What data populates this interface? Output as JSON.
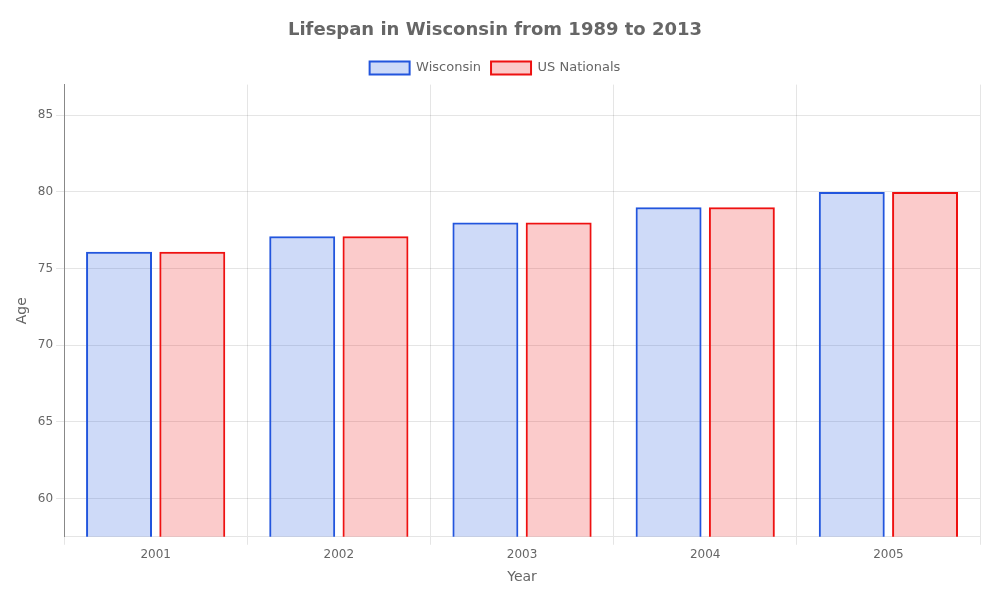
{
  "chart_data": {
    "type": "bar",
    "title": "Lifespan in Wisconsin from 1989 to 2013",
    "x_label": "Year",
    "y_label": "Age",
    "categories": [
      "2001",
      "2002",
      "2003",
      "2004",
      "2005"
    ],
    "series": [
      {
        "name": "Wisconsin",
        "color": "#2255dd",
        "values": [
          76.1,
          77.1,
          78.0,
          79.0,
          80.0
        ]
      },
      {
        "name": "US Nationals",
        "color": "#ee1111",
        "values": [
          76.1,
          77.1,
          78.0,
          79.0,
          80.0
        ]
      }
    ],
    "ylim": [
      57.5,
      87
    ],
    "yticks": [
      60,
      65,
      70,
      75,
      80,
      85
    ],
    "grid": true,
    "legend": "top"
  }
}
